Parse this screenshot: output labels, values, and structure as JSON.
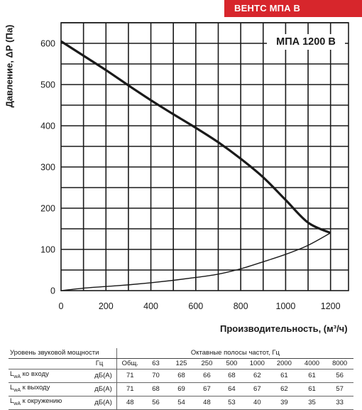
{
  "brand": {
    "label": "ВЕНТС МПА В",
    "color": "#d7262c"
  },
  "chart_data": {
    "type": "line",
    "title": "МПА 1200 В",
    "xlabel": "Производительность, (м³/ч)",
    "ylabel": "Давление, ΔР (Па)",
    "xlim": [
      0,
      1280
    ],
    "ylim": [
      0,
      650
    ],
    "x_ticks": [
      0,
      200,
      400,
      600,
      800,
      1000,
      1200
    ],
    "y_ticks": [
      0,
      100,
      200,
      300,
      400,
      500,
      600
    ],
    "grid": true,
    "series": [
      {
        "x": [
          0,
          100,
          200,
          300,
          400,
          500,
          600,
          700,
          800,
          900,
          1000,
          1100,
          1200
        ],
        "y": [
          605,
          570,
          535,
          498,
          462,
          428,
          395,
          360,
          320,
          275,
          220,
          165,
          140
        ],
        "style": "thick"
      },
      {
        "x": [
          0,
          100,
          200,
          300,
          400,
          500,
          600,
          700,
          800,
          900,
          1000,
          1100,
          1200
        ],
        "y": [
          0,
          6,
          10,
          14,
          19,
          25,
          32,
          40,
          53,
          70,
          88,
          110,
          140
        ],
        "style": "thin"
      }
    ]
  },
  "sound_table": {
    "col0_header": "Уровень звуковой мощности",
    "bands_header": "Октавные полосы частот, Гц",
    "unit_header": "Гц",
    "columns": [
      "Общ.",
      "63",
      "125",
      "250",
      "500",
      "1000",
      "2000",
      "4000",
      "8000"
    ],
    "rows": [
      {
        "label_main": "L",
        "label_sub": "wA",
        "label_rest": " ко входу",
        "unit": "дБ(А)",
        "values": [
          "71",
          "70",
          "68",
          "66",
          "68",
          "62",
          "61",
          "61",
          "56"
        ]
      },
      {
        "label_main": "L",
        "label_sub": "wA",
        "label_rest": " к выходу",
        "unit": "дБ(А)",
        "values": [
          "71",
          "68",
          "69",
          "67",
          "64",
          "67",
          "62",
          "61",
          "57"
        ]
      },
      {
        "label_main": "L",
        "label_sub": "wA",
        "label_rest": " к окружению",
        "unit": "дБ(А)",
        "values": [
          "48",
          "56",
          "54",
          "48",
          "53",
          "40",
          "39",
          "35",
          "33"
        ]
      }
    ]
  }
}
